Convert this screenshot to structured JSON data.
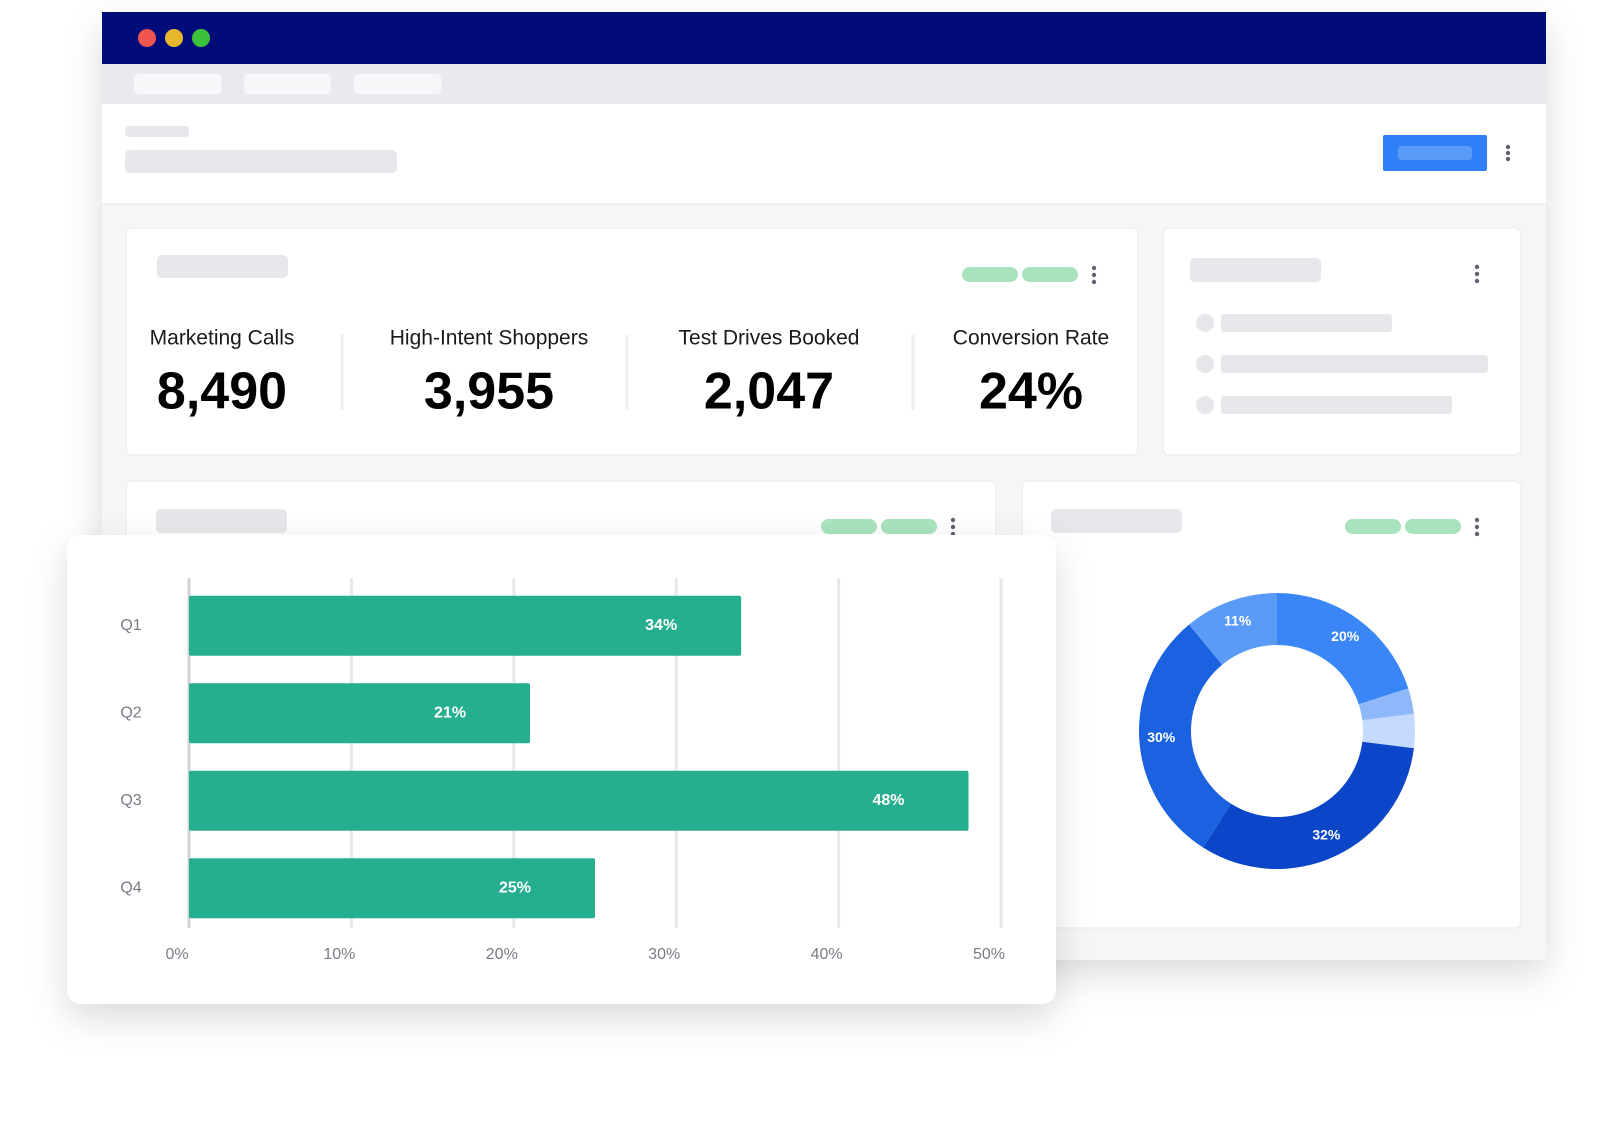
{
  "kpis": [
    {
      "label": "Marketing Calls",
      "value": "8,490"
    },
    {
      "label": "High-Intent Shoppers",
      "value": "3,955"
    },
    {
      "label": "Test Drives Booked",
      "value": "2,047"
    },
    {
      "label": "Conversion Rate",
      "value": "24%"
    }
  ],
  "chart_data": [
    {
      "type": "bar",
      "orientation": "horizontal",
      "categories": [
        "Q1",
        "Q2",
        "Q3",
        "Q4"
      ],
      "values": [
        34,
        21,
        48,
        25
      ],
      "value_labels": [
        "34%",
        "21%",
        "48%",
        "25%"
      ],
      "color": "#26ae90",
      "xlim": [
        0,
        50
      ],
      "xticks": [
        {
          "value": 0,
          "label": "0%"
        },
        {
          "value": 10,
          "label": "10%"
        },
        {
          "value": 20,
          "label": "20%"
        },
        {
          "value": 30,
          "label": "30%"
        },
        {
          "value": 40,
          "label": "40%"
        },
        {
          "value": 50,
          "label": "50%"
        }
      ],
      "grid": true
    },
    {
      "type": "donut",
      "values": [
        20,
        3,
        4,
        32,
        30,
        11
      ],
      "value_labels": [
        "20%",
        null,
        null,
        "32%",
        "30%",
        "11%"
      ],
      "colors": [
        "#3a86f7",
        "#8fb8fb",
        "#c4daff",
        "#0a46c7",
        "#1a62e0",
        "#5b9bf8"
      ]
    }
  ]
}
